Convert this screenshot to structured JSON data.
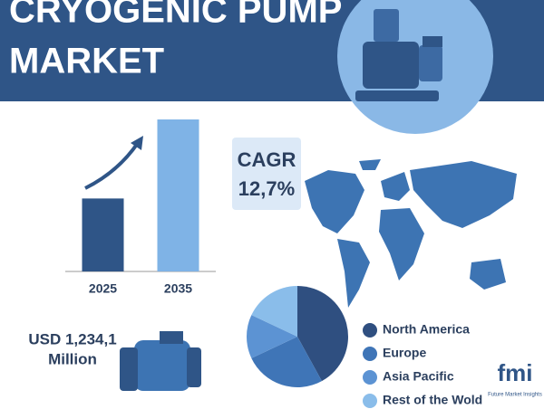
{
  "header": {
    "title_line1": "CRYOGENIC PUMP",
    "title_line2": "MARKET"
  },
  "cagr": {
    "label": "CAGR",
    "value": "12,7%"
  },
  "market_size": {
    "value": "USD 1,234,1",
    "unit": "Million"
  },
  "logo": {
    "mark": "fmi",
    "name": "Future Market Insights"
  },
  "chart_data": [
    {
      "type": "bar",
      "categories": [
        "2025",
        "2035"
      ],
      "values": [
        48,
        100
      ],
      "ylim": [
        0,
        100
      ],
      "colors": [
        "#2f5587",
        "#7fb3e6"
      ]
    },
    {
      "type": "pie",
      "categories": [
        "North America",
        "Europe",
        "Asia Pacific",
        "Rest of the Wold"
      ],
      "values": [
        42,
        26,
        14,
        18
      ],
      "colors": [
        "#2f4f80",
        "#3f75b7",
        "#5c93d3",
        "#8abdea"
      ]
    }
  ]
}
